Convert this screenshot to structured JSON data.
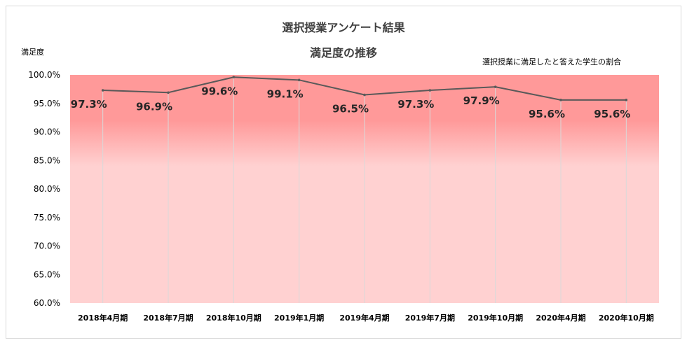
{
  "chart_data": {
    "type": "line",
    "title": "選択授業アンケート結果",
    "subtitle": "満足度の推移",
    "ylabel": "満足度",
    "annotation": "選択授業に満足したと答えた学生の割合",
    "categories": [
      "2018年4月期",
      "2018年7月期",
      "2018年10月期",
      "2019年1月期",
      "2019年4月期",
      "2019年7月期",
      "2019年10月期",
      "2020年4月期",
      "2020年10月期"
    ],
    "series": [
      {
        "values": [
          0.973,
          0.969,
          0.996,
          0.991,
          0.965,
          0.973,
          0.979,
          0.956,
          0.956
        ],
        "labels": [
          "97.3%",
          "96.9%",
          "99.6%",
          "99.1%",
          "96.5%",
          "97.3%",
          "97.9%",
          "95.6%",
          "95.6%"
        ]
      }
    ],
    "yticks": [
      "100.0%",
      "95.0%",
      "90.0%",
      "85.0%",
      "80.0%",
      "75.0%",
      "70.0%",
      "65.0%",
      "60.0%"
    ],
    "ylim": [
      0.6,
      1.0
    ],
    "grid": false,
    "colors": {
      "line": "#595959",
      "band_top": "#ff9999",
      "band_bottom": "#ffd1d1",
      "vline": "#d9d9d9"
    }
  }
}
